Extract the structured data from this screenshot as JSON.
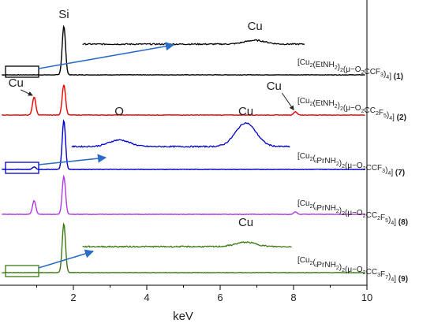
{
  "chart_data": {
    "type": "line",
    "xlabel": "keV",
    "xlim": [
      0,
      10
    ],
    "xticks": [
      2,
      4,
      6,
      8,
      10
    ],
    "series": [
      {
        "label_parts": [
          [
            "[Cu",
            "n"
          ],
          [
            "2",
            "s"
          ],
          [
            "(EtNH",
            "n"
          ],
          [
            "2",
            "s"
          ],
          [
            ")",
            "n"
          ],
          [
            "2",
            "s"
          ],
          [
            "(μ−O",
            "n"
          ],
          [
            "2",
            "s"
          ],
          [
            "CCF",
            "n"
          ],
          [
            "3",
            "s"
          ],
          [
            ")",
            "n"
          ],
          [
            "4",
            "s"
          ],
          [
            "] ",
            "n"
          ],
          [
            "(1)",
            "b"
          ]
        ],
        "color": "#000000",
        "peaks": [
          [
            1.74,
            1.0
          ]
        ],
        "zoom": true,
        "zoom_peaks": [
          [
            6.95,
            0.6
          ]
        ],
        "zoom_labels": [
          {
            "text": "Cu",
            "x": 6.95
          }
        ]
      },
      {
        "label_parts": [
          [
            "[Cu",
            "n"
          ],
          [
            "2",
            "s"
          ],
          [
            "(EtNH",
            "n"
          ],
          [
            "2",
            "s"
          ],
          [
            ")",
            "n"
          ],
          [
            "2",
            "s"
          ],
          [
            "(μ−O",
            "n"
          ],
          [
            "2",
            "s"
          ],
          [
            "CC",
            "n"
          ],
          [
            "2",
            "s"
          ],
          [
            "F",
            "n"
          ],
          [
            "5",
            "s"
          ],
          [
            ")",
            "n"
          ],
          [
            "4",
            "s"
          ],
          [
            "] ",
            "n"
          ],
          [
            "(2)",
            "b"
          ]
        ],
        "color": "#ee0000",
        "peaks": [
          [
            0.93,
            0.37
          ],
          [
            1.74,
            0.62
          ],
          [
            8.05,
            0.07
          ]
        ],
        "zoom": false,
        "labels": [
          {
            "text": "Cu",
            "x": 0.93
          },
          {
            "text": "Cu",
            "x": 8.05
          }
        ]
      },
      {
        "label_parts": [
          [
            "[Cu",
            "n"
          ],
          [
            "2",
            "s"
          ],
          [
            "(",
            "n"
          ],
          [
            "i",
            "s"
          ],
          [
            "PrNH",
            "n"
          ],
          [
            "2",
            "s"
          ],
          [
            ")",
            "n"
          ],
          [
            "2",
            "s"
          ],
          [
            "(μ−O",
            "n"
          ],
          [
            "2",
            "s"
          ],
          [
            "CCF",
            "n"
          ],
          [
            "3",
            "s"
          ],
          [
            ")",
            "n"
          ],
          [
            "4",
            "s"
          ],
          [
            "] ",
            "n"
          ],
          [
            "(7)",
            "b"
          ]
        ],
        "color": "#0000cc",
        "peaks": [
          [
            1.74,
            1.0
          ],
          [
            0.93,
            0.05
          ]
        ],
        "zoom": true,
        "zoom_peaks": [
          [
            3.25,
            0.28
          ],
          [
            6.7,
            1.0
          ]
        ],
        "zoom_labels": [
          {
            "text": "O",
            "x": 3.25
          },
          {
            "text": "Cu",
            "x": 6.7
          }
        ]
      },
      {
        "label_parts": [
          [
            "[Cu",
            "n"
          ],
          [
            "2",
            "s"
          ],
          [
            "(",
            "n"
          ],
          [
            "i",
            "s"
          ],
          [
            "PrNH",
            "n"
          ],
          [
            "2",
            "s"
          ],
          [
            ")",
            "n"
          ],
          [
            "2",
            "s"
          ],
          [
            "(μ−O",
            "n"
          ],
          [
            "2",
            "s"
          ],
          [
            "CC",
            "n"
          ],
          [
            "2",
            "s"
          ],
          [
            "F",
            "n"
          ],
          [
            "5",
            "s"
          ],
          [
            ")",
            "n"
          ],
          [
            "4",
            "s"
          ],
          [
            "] ",
            "n"
          ],
          [
            "(8)",
            "b"
          ]
        ],
        "color": "#b03adf",
        "peaks": [
          [
            0.93,
            0.28
          ],
          [
            1.74,
            0.78
          ],
          [
            8.05,
            0.05
          ]
        ],
        "zoom": false
      },
      {
        "label_parts": [
          [
            "[Cu",
            "n"
          ],
          [
            "2",
            "s"
          ],
          [
            "(",
            "n"
          ],
          [
            "i",
            "s"
          ],
          [
            "PrNH",
            "n"
          ],
          [
            "2",
            "s"
          ],
          [
            ")",
            "n"
          ],
          [
            "2",
            "s"
          ],
          [
            "(μ−O",
            "n"
          ],
          [
            "2",
            "s"
          ],
          [
            "CC",
            "n"
          ],
          [
            "3",
            "s"
          ],
          [
            "F",
            "n"
          ],
          [
            "7",
            "s"
          ],
          [
            ")",
            "n"
          ],
          [
            "4",
            "s"
          ],
          [
            "] ",
            "n"
          ],
          [
            "(9)",
            "b"
          ]
        ],
        "color": "#3a7a10",
        "peaks": [
          [
            1.74,
            1.0
          ]
        ],
        "zoom": true,
        "zoom_peaks": [
          [
            6.7,
            0.35
          ]
        ],
        "zoom_labels": [
          {
            "text": "Cu",
            "x": 6.7
          }
        ]
      }
    ],
    "annotations": [
      {
        "text": "Si",
        "x": 1.74,
        "series": 0
      }
    ]
  }
}
